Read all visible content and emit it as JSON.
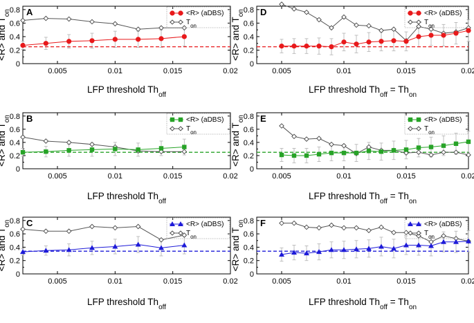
{
  "colors": {
    "red": "#e8191b",
    "green": "#27a327",
    "blue": "#1d1ad8",
    "ton": "#555555"
  },
  "common": {
    "ylabel_pre": "<R>  and  T",
    "ylabel_sub": "on",
    "xlabel_left_pre": "LFP threshold Th",
    "xlabel_left_sub": "off",
    "xlabel_right_pre": "LFP threshold Th",
    "xlabel_right_sub1": "off",
    "xlabel_right_mid": " = Th",
    "xlabel_right_sub2": "on",
    "legend_r": "<R> (aDBS)",
    "legend_ton_pre": "T",
    "legend_ton_sub": "on",
    "xticks": [
      0.005,
      0.01,
      0.015,
      0.02
    ],
    "xtick_labels": [
      "0.005",
      "0.01",
      "0.015",
      "0.02"
    ],
    "yticks": [
      0,
      0.2,
      0.4,
      0.6,
      0.8
    ],
    "ytick_labels": [
      "0",
      "0.2",
      "0.4",
      "0.6",
      "0.8"
    ]
  },
  "chart_data": [
    {
      "panel": "A",
      "type": "line",
      "color": "red",
      "marker": "circle",
      "xlim": [
        0.002,
        0.02
      ],
      "ylim": [
        0,
        0.85
      ],
      "x": [
        0.002,
        0.004,
        0.006,
        0.008,
        0.01,
        0.012,
        0.014,
        0.016
      ],
      "r": [
        0.27,
        0.3,
        0.33,
        0.34,
        0.36,
        0.36,
        0.37,
        0.4
      ],
      "r_err": [
        0.06,
        0.09,
        0.1,
        0.11,
        0.12,
        0.12,
        0.13,
        0.14
      ],
      "ton": [
        0.64,
        0.67,
        0.66,
        0.62,
        0.59,
        0.51,
        0.53,
        0.53
      ],
      "baseline": 0.25
    },
    {
      "panel": "B",
      "type": "line",
      "color": "green",
      "marker": "square",
      "xlim": [
        0.002,
        0.02
      ],
      "ylim": [
        0,
        0.85
      ],
      "x": [
        0.002,
        0.004,
        0.006,
        0.008,
        0.01,
        0.012,
        0.014,
        0.016
      ],
      "r": [
        0.25,
        0.26,
        0.28,
        0.29,
        0.3,
        0.29,
        0.31,
        0.33
      ],
      "r_err": [
        0.06,
        0.08,
        0.09,
        0.1,
        0.1,
        0.1,
        0.11,
        0.12
      ],
      "ton": [
        0.48,
        0.42,
        0.4,
        0.37,
        0.33,
        0.27,
        0.26,
        0.26
      ],
      "baseline": 0.25
    },
    {
      "panel": "C",
      "type": "line",
      "color": "blue",
      "marker": "triangle",
      "xlim": [
        0.002,
        0.02
      ],
      "ylim": [
        0,
        0.85
      ],
      "x": [
        0.002,
        0.004,
        0.006,
        0.008,
        0.01,
        0.012,
        0.014,
        0.016
      ],
      "r": [
        0.33,
        0.35,
        0.36,
        0.39,
        0.41,
        0.44,
        0.39,
        0.43
      ],
      "r_err": [
        0.05,
        0.07,
        0.09,
        0.1,
        0.11,
        0.12,
        0.12,
        0.13
      ],
      "ton": [
        0.67,
        0.64,
        0.64,
        0.71,
        0.69,
        0.71,
        0.51,
        0.58
      ],
      "baseline": 0.34
    },
    {
      "panel": "D",
      "type": "line",
      "color": "red",
      "marker": "circle",
      "xlim": [
        0.003,
        0.02
      ],
      "ylim": [
        0,
        0.85
      ],
      "x": [
        0.005,
        0.006,
        0.007,
        0.008,
        0.009,
        0.01,
        0.011,
        0.012,
        0.013,
        0.014,
        0.015,
        0.016,
        0.017,
        0.018,
        0.019,
        0.02
      ],
      "r": [
        0.26,
        0.26,
        0.26,
        0.26,
        0.25,
        0.32,
        0.29,
        0.32,
        0.33,
        0.34,
        0.33,
        0.4,
        0.42,
        0.42,
        0.45,
        0.49
      ],
      "r_err": [
        0.1,
        0.11,
        0.11,
        0.12,
        0.12,
        0.13,
        0.13,
        0.14,
        0.14,
        0.15,
        0.14,
        0.15,
        0.15,
        0.16,
        0.16,
        0.16
      ],
      "ton": [
        0.88,
        0.81,
        0.76,
        0.65,
        0.53,
        0.69,
        0.57,
        0.56,
        0.49,
        0.51,
        0.34,
        0.55,
        0.51,
        0.45,
        0.47,
        0.53
      ],
      "baseline": 0.25
    },
    {
      "panel": "E",
      "type": "line",
      "color": "green",
      "marker": "square",
      "xlim": [
        0.003,
        0.02
      ],
      "ylim": [
        0,
        0.85
      ],
      "x": [
        0.005,
        0.006,
        0.007,
        0.008,
        0.009,
        0.01,
        0.011,
        0.012,
        0.013,
        0.014,
        0.015,
        0.016,
        0.017,
        0.018,
        0.019,
        0.02
      ],
      "r": [
        0.21,
        0.2,
        0.2,
        0.22,
        0.24,
        0.24,
        0.24,
        0.27,
        0.26,
        0.28,
        0.29,
        0.32,
        0.33,
        0.35,
        0.38,
        0.41
      ],
      "r_err": [
        0.1,
        0.11,
        0.11,
        0.11,
        0.12,
        0.12,
        0.13,
        0.13,
        0.13,
        0.14,
        0.14,
        0.14,
        0.15,
        0.15,
        0.16,
        0.16
      ],
      "ton": [
        0.65,
        0.49,
        0.45,
        0.46,
        0.37,
        0.35,
        0.23,
        0.33,
        0.28,
        0.28,
        0.24,
        0.25,
        0.21,
        0.25,
        0.25,
        0.21
      ],
      "baseline": 0.25
    },
    {
      "panel": "F",
      "type": "line",
      "color": "blue",
      "marker": "triangle",
      "xlim": [
        0.003,
        0.02
      ],
      "ylim": [
        0,
        0.85
      ],
      "x": [
        0.005,
        0.006,
        0.007,
        0.008,
        0.009,
        0.01,
        0.011,
        0.012,
        0.013,
        0.014,
        0.015,
        0.016,
        0.017,
        0.018,
        0.019,
        0.02
      ],
      "r": [
        0.29,
        0.32,
        0.31,
        0.33,
        0.36,
        0.36,
        0.37,
        0.38,
        0.41,
        0.38,
        0.43,
        0.43,
        0.42,
        0.48,
        0.48,
        0.49
      ],
      "r_err": [
        0.1,
        0.11,
        0.11,
        0.12,
        0.12,
        0.13,
        0.13,
        0.13,
        0.14,
        0.14,
        0.14,
        0.15,
        0.15,
        0.15,
        0.16,
        0.16
      ],
      "ton": [
        0.76,
        0.76,
        0.7,
        0.69,
        0.73,
        0.69,
        0.69,
        0.65,
        0.7,
        0.62,
        0.62,
        0.57,
        0.48,
        0.57,
        0.53,
        0.49
      ],
      "baseline": 0.34
    }
  ]
}
